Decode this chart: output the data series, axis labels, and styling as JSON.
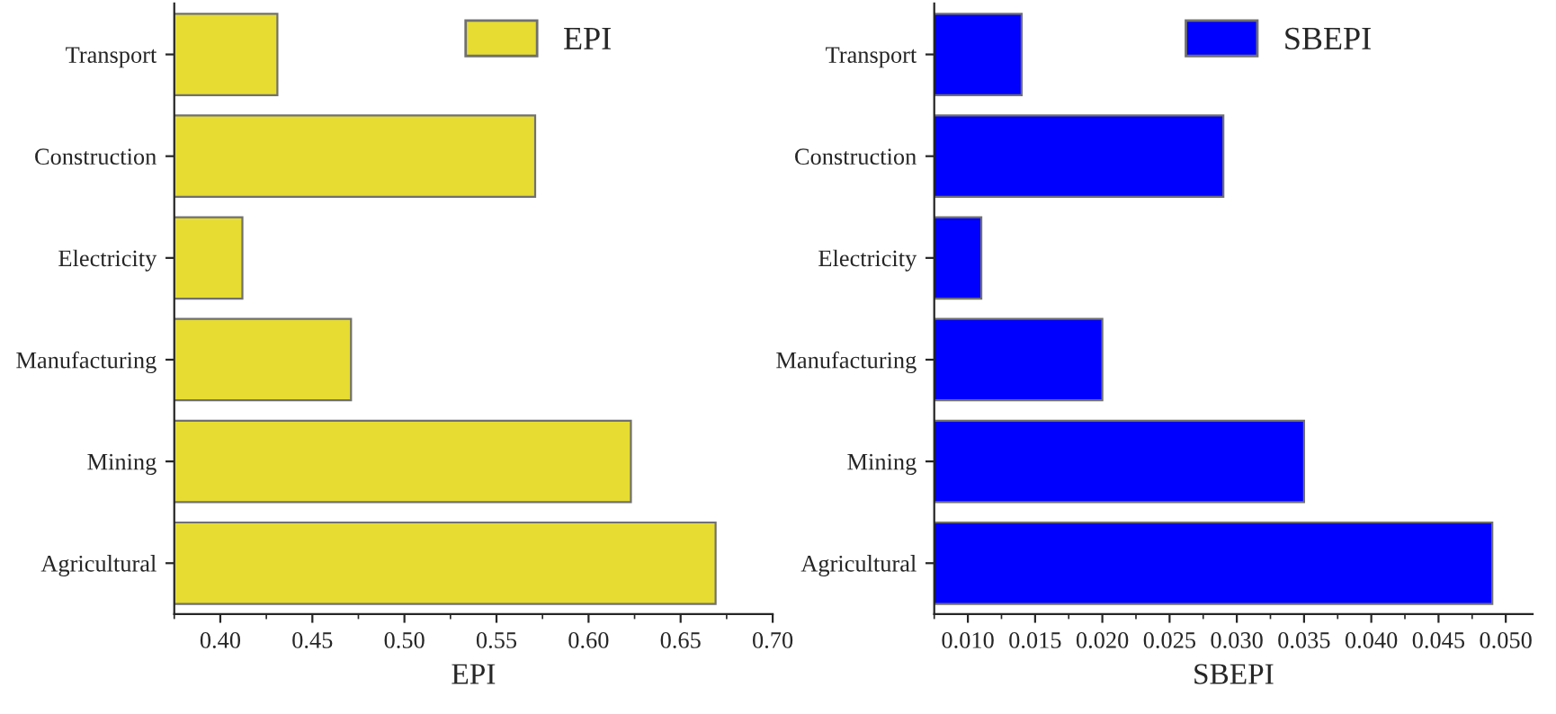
{
  "chart_data": [
    {
      "type": "bar",
      "orientation": "horizontal",
      "xlabel": "EPI",
      "categories": [
        "Transport",
        "Construction",
        "Electricity",
        "Manufacturing",
        "Mining",
        "Agricultural"
      ],
      "series": [
        {
          "name": "EPI",
          "color": "#e6dc32",
          "values": [
            0.431,
            0.571,
            0.412,
            0.471,
            0.623,
            0.669
          ]
        }
      ],
      "xlim": [
        0.375,
        0.7
      ],
      "xticks": [
        {
          "value": 0.4,
          "label": "0.40"
        },
        {
          "value": 0.45,
          "label": "0.45"
        },
        {
          "value": 0.5,
          "label": "0.50"
        },
        {
          "value": 0.55,
          "label": "0.55"
        },
        {
          "value": 0.6,
          "label": "0.60"
        },
        {
          "value": 0.65,
          "label": "0.65"
        },
        {
          "value": 0.7,
          "label": "0.70"
        }
      ],
      "legend": "top right",
      "grid": false
    },
    {
      "type": "bar",
      "orientation": "horizontal",
      "xlabel": "SBEPI",
      "categories": [
        "Transport",
        "Construction",
        "Electricity",
        "Manufacturing",
        "Mining",
        "Agricultural"
      ],
      "series": [
        {
          "name": "SBEPI",
          "color": "#0000ff",
          "values": [
            0.014,
            0.029,
            0.011,
            0.02,
            0.035,
            0.049
          ]
        }
      ],
      "xlim": [
        0.0075,
        0.052
      ],
      "xticks": [
        {
          "value": 0.01,
          "label": "0.010"
        },
        {
          "value": 0.015,
          "label": "0.015"
        },
        {
          "value": 0.02,
          "label": "0.020"
        },
        {
          "value": 0.025,
          "label": "0.025"
        },
        {
          "value": 0.03,
          "label": "0.030"
        },
        {
          "value": 0.035,
          "label": "0.035"
        },
        {
          "value": 0.04,
          "label": "0.040"
        },
        {
          "value": 0.045,
          "label": "0.045"
        },
        {
          "value": 0.05,
          "label": "0.050"
        }
      ],
      "legend": "top right",
      "grid": false
    }
  ]
}
